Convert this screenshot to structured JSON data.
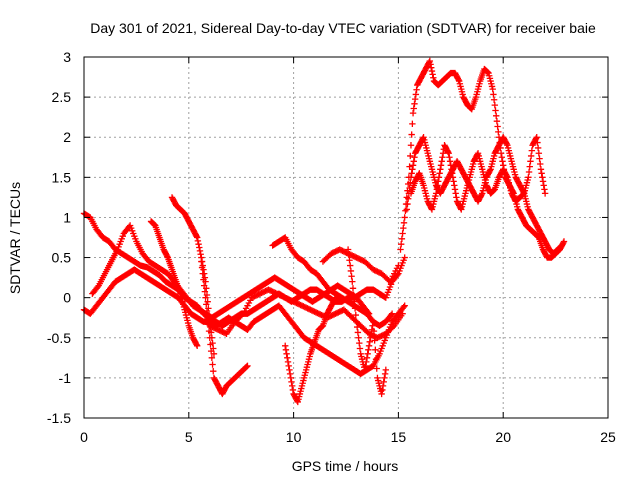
{
  "chart_data": {
    "type": "scatter",
    "title": "Day 301 of 2021, Sidereal Day-to-day VTEC variation (SDTVAR) for receiver baie",
    "xlabel": "GPS time / hours",
    "ylabel": "SDTVAR / TECUs",
    "xlim": [
      0,
      25
    ],
    "ylim": [
      -1.5,
      3
    ],
    "xticks": [
      0,
      5,
      10,
      15,
      20,
      25
    ],
    "xtick_labels": [
      "0",
      "5",
      "10",
      "15",
      "20",
      "25"
    ],
    "yticks": [
      -1.5,
      -1,
      -0.5,
      0,
      0.5,
      1,
      1.5,
      2,
      2.5,
      3
    ],
    "ytick_labels": [
      "-1.5",
      "-1",
      "-0.5",
      "0",
      "0.5",
      "1",
      "1.5",
      "2",
      "2.5",
      "3"
    ],
    "grid": true,
    "marker": "plus",
    "color": "#ff0000",
    "series": [
      {
        "x": [
          0.0,
          0.3,
          0.6,
          0.9,
          1.2,
          1.5,
          1.8,
          2.1,
          2.4,
          2.7,
          3.0,
          3.3,
          3.6,
          3.9,
          4.2,
          4.5,
          4.8,
          5.1,
          5.4,
          5.7,
          6.0,
          6.3,
          6.6,
          6.9,
          7.2,
          7.5,
          7.8,
          8.1,
          8.4,
          8.7,
          9.0,
          9.3,
          9.6,
          9.9,
          10.2,
          10.5,
          10.8,
          11.1,
          11.4,
          11.7,
          12.0,
          12.3,
          12.6,
          12.9,
          13.2,
          13.5,
          13.8,
          14.1,
          14.4,
          14.7,
          15.0,
          15.3
        ],
        "y": [
          1.05,
          1.0,
          0.85,
          0.75,
          0.7,
          0.6,
          0.55,
          0.5,
          0.45,
          0.4,
          0.38,
          0.33,
          0.28,
          0.2,
          0.15,
          0.1,
          0.0,
          -0.05,
          -0.1,
          -0.2,
          -0.25,
          -0.3,
          -0.35,
          -0.3,
          -0.25,
          -0.2,
          -0.2,
          -0.15,
          -0.1,
          -0.05,
          0.0,
          0.05,
          0.0,
          -0.05,
          0.0,
          0.05,
          0.1,
          0.1,
          0.05,
          0.0,
          -0.05,
          -0.05,
          0.0,
          0.0,
          0.05,
          0.1,
          0.1,
          0.05,
          0.0,
          0.2,
          0.3,
          0.5
        ]
      },
      {
        "x": [
          0.0,
          0.3,
          0.6,
          0.9,
          1.2,
          1.5,
          1.8,
          2.1,
          2.4,
          2.7,
          3.0,
          3.3,
          3.6,
          3.9,
          4.2,
          4.5,
          4.8,
          5.1,
          5.4,
          5.7,
          6.0,
          6.3,
          6.6,
          6.9,
          7.2,
          7.5,
          7.8,
          8.1,
          8.4,
          8.7,
          9.0,
          9.3,
          9.6,
          9.9,
          10.2,
          10.5,
          10.8,
          11.1,
          11.4,
          11.7,
          12.0,
          12.3,
          12.6,
          12.9,
          13.2,
          13.5,
          13.8,
          14.1,
          14.4,
          14.7,
          15.0,
          15.3
        ],
        "y": [
          -0.15,
          -0.2,
          -0.1,
          0.0,
          0.1,
          0.2,
          0.25,
          0.3,
          0.35,
          0.3,
          0.25,
          0.2,
          0.15,
          0.1,
          0.05,
          0.0,
          -0.1,
          -0.2,
          -0.25,
          -0.3,
          -0.3,
          -0.35,
          -0.3,
          -0.25,
          -0.3,
          -0.35,
          -0.4,
          -0.3,
          -0.25,
          -0.2,
          -0.15,
          -0.1,
          -0.2,
          -0.3,
          -0.4,
          -0.5,
          -0.55,
          -0.6,
          -0.65,
          -0.7,
          -0.75,
          -0.8,
          -0.85,
          -0.9,
          -0.95,
          -0.9,
          -0.85,
          -0.7,
          -0.5,
          -0.3,
          -0.2,
          -0.1
        ]
      },
      {
        "x": [
          0.4,
          0.7,
          1.0,
          1.3,
          1.6,
          1.9,
          2.2,
          2.5,
          2.8,
          3.1,
          3.4,
          3.7,
          4.0,
          4.3,
          4.6,
          4.9,
          5.2,
          5.5,
          5.8,
          6.1,
          6.4,
          6.7,
          7.0,
          7.3,
          7.6,
          7.9,
          8.2,
          8.5,
          8.8,
          9.1,
          9.4,
          9.7,
          10.0,
          10.3,
          10.6,
          10.9,
          11.2,
          11.5,
          11.8,
          12.1,
          12.4,
          12.7,
          13.0,
          13.3,
          13.6
        ],
        "y": [
          0.05,
          0.15,
          0.3,
          0.45,
          0.6,
          0.8,
          0.9,
          0.7,
          0.55,
          0.45,
          0.4,
          0.35,
          0.3,
          0.2,
          0.1,
          0.0,
          -0.1,
          -0.15,
          -0.2,
          -0.25,
          -0.2,
          -0.15,
          -0.1,
          -0.05,
          0.0,
          0.05,
          0.1,
          0.15,
          0.2,
          0.25,
          0.2,
          0.15,
          0.1,
          0.05,
          0.0,
          -0.05,
          0.0,
          0.05,
          0.1,
          0.15,
          0.1,
          0.05,
          0.0,
          -0.1,
          -0.2
        ]
      },
      {
        "x": [
          3.2,
          3.4,
          3.6,
          3.8,
          4.0,
          4.2,
          4.4,
          4.6,
          4.8,
          5.0,
          5.2,
          5.4
        ],
        "y": [
          0.95,
          0.9,
          0.75,
          0.6,
          0.5,
          0.35,
          0.2,
          0.05,
          -0.15,
          -0.35,
          -0.5,
          -0.6
        ]
      },
      {
        "x": [
          4.2,
          4.4,
          4.6,
          4.8,
          5.0,
          5.2,
          5.4,
          5.6,
          5.8,
          6.0,
          6.2
        ],
        "y": [
          1.25,
          1.15,
          1.1,
          1.05,
          0.95,
          0.85,
          0.75,
          0.5,
          0.2,
          -0.3,
          -0.7
        ]
      },
      {
        "x": [
          5.6,
          5.8,
          6.0,
          6.2,
          6.4,
          6.6,
          6.8,
          7.0,
          7.2,
          7.4,
          7.6,
          7.8
        ],
        "y": [
          0.45,
          0.0,
          -0.5,
          -1.0,
          -1.1,
          -1.2,
          -1.1,
          -1.05,
          -1.0,
          -0.95,
          -0.9,
          -0.85
        ]
      },
      {
        "x": [
          6.0,
          6.4,
          6.8,
          7.2,
          7.6,
          8.0,
          8.4,
          8.8,
          9.2,
          9.6,
          10.0,
          10.4,
          10.8,
          11.2,
          11.6,
          12.0,
          12.4,
          12.8,
          13.2,
          13.6,
          14.0,
          14.4,
          14.8,
          15.2
        ],
        "y": [
          -0.35,
          -0.4,
          -0.45,
          -0.3,
          -0.2,
          0.0,
          0.05,
          0.1,
          0.05,
          0.0,
          -0.05,
          -0.1,
          -0.15,
          -0.2,
          -0.25,
          -0.2,
          -0.15,
          -0.25,
          -0.35,
          -0.45,
          -0.5,
          -0.45,
          -0.35,
          -0.2
        ]
      },
      {
        "x": [
          9.0,
          9.3,
          9.6,
          9.9,
          10.2,
          10.5,
          10.8,
          11.1,
          11.4,
          11.7,
          12.0,
          12.3,
          12.6,
          12.9,
          13.2,
          13.5,
          13.8,
          14.1,
          14.4,
          14.7
        ],
        "y": [
          0.65,
          0.7,
          0.75,
          0.6,
          0.5,
          0.45,
          0.35,
          0.3,
          0.2,
          0.1,
          0.05,
          0.0,
          -0.05,
          -0.1,
          -0.15,
          -0.2,
          -0.3,
          -0.35,
          -0.3,
          -0.2
        ]
      },
      {
        "x": [
          9.6,
          9.8,
          10.0,
          10.2,
          10.4,
          10.6,
          10.8,
          11.0,
          11.2,
          11.4,
          11.6,
          11.8,
          12.0
        ],
        "y": [
          -0.6,
          -0.9,
          -1.2,
          -1.3,
          -1.1,
          -0.9,
          -0.7,
          -0.55,
          -0.4,
          -0.35,
          -0.2,
          -0.1,
          0.0
        ]
      },
      {
        "x": [
          11.4,
          11.8,
          12.2,
          12.6,
          13.0,
          13.4,
          13.8,
          14.2,
          14.6,
          15.0
        ],
        "y": [
          0.45,
          0.55,
          0.6,
          0.55,
          0.5,
          0.45,
          0.35,
          0.3,
          0.2,
          0.4
        ]
      },
      {
        "x": [
          12.6,
          12.8,
          13.0,
          13.2,
          13.4,
          13.6,
          13.8,
          14.0,
          14.2,
          14.4
        ],
        "y": [
          0.6,
          0.2,
          -0.3,
          -0.7,
          -0.9,
          -0.6,
          -0.3,
          -1.0,
          -1.2,
          -0.9
        ]
      },
      {
        "x": [
          15.1,
          15.3,
          15.5,
          15.7,
          15.9,
          16.1,
          16.3,
          16.5,
          16.7,
          16.9,
          17.1,
          17.3,
          17.5,
          17.7,
          17.9,
          18.1,
          18.3,
          18.5,
          18.7,
          18.9,
          19.1,
          19.3,
          19.5,
          19.7,
          19.9,
          20.1,
          20.3,
          20.5,
          20.7,
          20.9,
          21.1,
          21.3,
          21.5,
          21.7,
          21.9,
          22.1,
          22.3,
          22.5,
          22.7,
          22.9
        ],
        "y": [
          0.6,
          1.0,
          1.5,
          2.3,
          2.65,
          2.75,
          2.85,
          2.95,
          2.7,
          2.65,
          2.7,
          2.75,
          2.8,
          2.8,
          2.7,
          2.5,
          2.4,
          2.35,
          2.5,
          2.7,
          2.85,
          2.8,
          2.6,
          2.2,
          1.8,
          1.5,
          1.4,
          1.3,
          1.1,
          1.0,
          0.9,
          0.85,
          0.8,
          0.75,
          0.6,
          0.5,
          0.5,
          0.55,
          0.6,
          0.7
        ]
      },
      {
        "x": [
          15.4,
          15.6,
          15.8,
          16.0,
          16.2,
          16.4,
          16.6,
          16.8,
          17.0,
          17.2,
          17.4,
          17.6,
          17.8,
          18.0,
          18.2,
          18.4,
          18.6,
          18.8,
          19.0,
          19.2,
          19.4,
          19.6,
          19.8,
          20.0,
          20.2,
          20.4,
          20.6,
          20.8,
          21.0,
          21.2,
          21.4,
          21.6,
          21.8,
          22.0,
          22.2,
          22.4,
          22.6,
          22.8
        ],
        "y": [
          1.1,
          1.5,
          1.8,
          1.9,
          2.0,
          1.8,
          1.6,
          1.4,
          1.3,
          1.4,
          1.5,
          1.6,
          1.7,
          1.6,
          1.5,
          1.4,
          1.3,
          1.2,
          1.3,
          1.5,
          1.6,
          1.8,
          1.9,
          2.0,
          1.9,
          1.7,
          1.5,
          1.4,
          1.3,
          1.1,
          1.0,
          0.9,
          0.8,
          0.7,
          0.6,
          0.55,
          0.6,
          0.65
        ]
      },
      {
        "x": [
          15.6,
          15.8,
          16.0,
          16.2,
          16.4,
          16.6,
          16.8,
          17.0,
          17.2,
          17.4,
          17.6,
          17.8,
          18.0,
          18.2,
          18.4,
          18.6,
          18.8,
          19.0,
          19.2,
          19.4,
          19.6,
          19.8,
          20.0,
          20.2,
          20.4,
          20.6,
          20.8,
          21.0,
          21.2,
          21.4,
          21.6,
          21.8,
          22.0
        ],
        "y": [
          1.3,
          1.45,
          1.55,
          1.4,
          1.2,
          1.1,
          1.3,
          1.6,
          1.9,
          1.8,
          1.5,
          1.2,
          1.1,
          1.3,
          1.5,
          1.7,
          1.8,
          1.6,
          1.4,
          1.3,
          1.35,
          1.5,
          1.6,
          1.5,
          1.3,
          1.2,
          1.25,
          1.3,
          1.5,
          1.9,
          2.0,
          1.6,
          1.3
        ]
      }
    ]
  }
}
